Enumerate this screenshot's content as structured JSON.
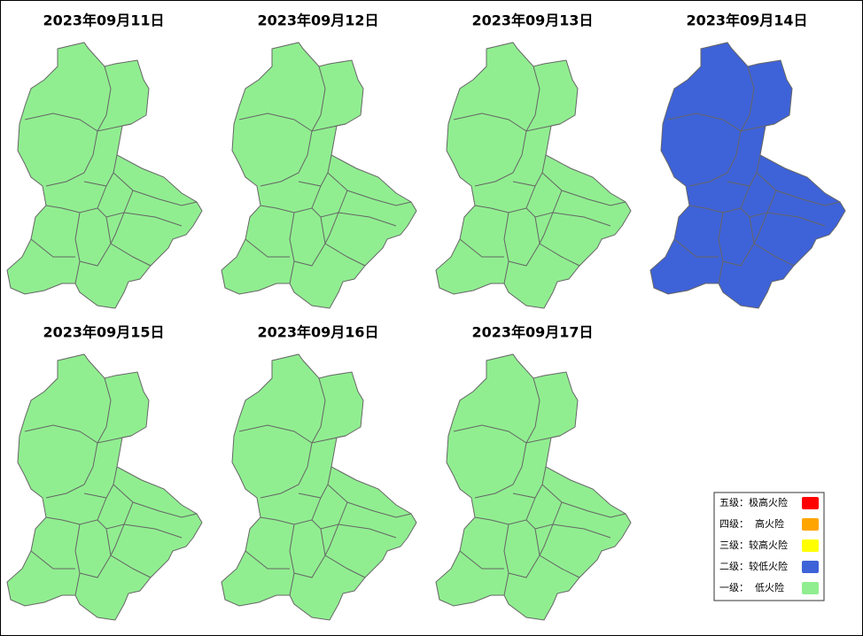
{
  "panels": [
    {
      "date": "2023年09月11日",
      "color": "#90ee90"
    },
    {
      "date": "2023年09月12日",
      "color": "#90ee90"
    },
    {
      "date": "2023年09月13日",
      "color": "#90ee90"
    },
    {
      "date": "2023年09月14日",
      "color": "#3e62d8"
    },
    {
      "date": "2023年09月15日",
      "color": "#90ee90"
    },
    {
      "date": "2023年09月16日",
      "color": "#90ee90"
    },
    {
      "date": "2023年09月17日",
      "color": "#90ee90"
    }
  ],
  "legend": [
    {
      "label": "五级：极高火险",
      "color": "#ff0000"
    },
    {
      "label": "四级：  高火险",
      "color": "#ffa500"
    },
    {
      "label": "三级：较高火险",
      "color": "#ffff00"
    },
    {
      "label": "二级：较低火险",
      "color": "#3e62d8"
    },
    {
      "label": "一级：  低火险",
      "color": "#90ee90"
    }
  ]
}
